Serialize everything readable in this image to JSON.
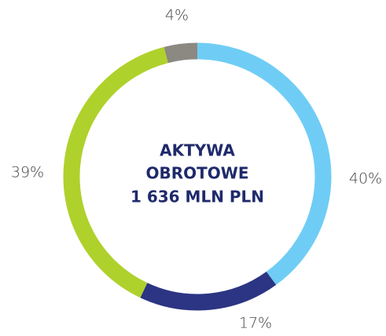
{
  "chart_data": {
    "type": "donut",
    "center_label": [
      "AKTYWA",
      "OBROTOWE",
      "1 636 MLN PLN"
    ],
    "values": [
      40,
      17,
      39,
      4
    ],
    "value_labels": [
      "40%",
      "17%",
      "39%",
      "4%"
    ],
    "colors": [
      "#6fcdf5",
      "#2b3583",
      "#afd12c",
      "#8c8882"
    ]
  }
}
